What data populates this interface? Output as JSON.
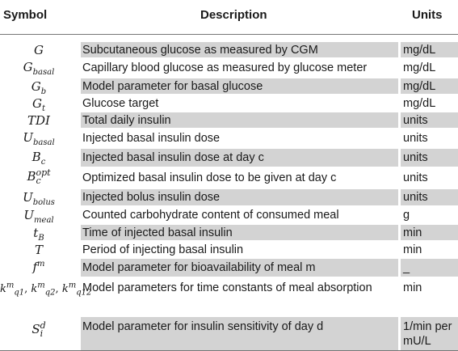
{
  "header": {
    "symbol": "Symbol",
    "description": "Description",
    "units": "Units"
  },
  "rows": [
    {
      "sym_base": "G",
      "sym_sub": "",
      "sym_sup": "",
      "description": "Subcutaneous glucose as measured by CGM",
      "units": "mg/dL"
    },
    {
      "sym_base": "G",
      "sym_sub": "basal",
      "sym_sup": "",
      "description": "Capillary blood glucose as measured by glucose meter",
      "units": "mg/dL"
    },
    {
      "sym_base": "G",
      "sym_sub": "b",
      "sym_sup": "",
      "description": "Model parameter for basal glucose",
      "units": "mg/dL"
    },
    {
      "sym_base": "G",
      "sym_sub": "t",
      "sym_sup": "",
      "description": "Glucose target",
      "units": "mg/dL"
    },
    {
      "sym_base": "TDI",
      "sym_sub": "",
      "sym_sup": "",
      "description": "Total daily insulin",
      "units": "units"
    },
    {
      "sym_base": "U",
      "sym_sub": "basal",
      "sym_sup": "",
      "description": "Injected basal insulin dose",
      "units": "units"
    },
    {
      "sym_base": "B",
      "sym_sub": "c",
      "sym_sup": "",
      "description": "Injected basal insulin dose at day c",
      "units": "units"
    },
    {
      "sym_base": "B",
      "sym_sub": "c",
      "sym_sup": "opt",
      "description": "Optimized basal insulin dose to be given at day c",
      "units": "units"
    },
    {
      "sym_base": "U",
      "sym_sub": "bolus",
      "sym_sup": "",
      "description": "Injected bolus insulin dose",
      "units": "units"
    },
    {
      "sym_base": "U",
      "sym_sub": "meal",
      "sym_sup": "",
      "description": "Counted carbohydrate content of consumed meal",
      "units": "g"
    },
    {
      "sym_base": "t",
      "sym_sub": "B",
      "sym_sup": "",
      "description": "Time of injected basal insulin",
      "units": "min"
    },
    {
      "sym_base": "T",
      "sym_sub": "",
      "sym_sup": "",
      "description": "Period of injecting basal insulin",
      "units": "min"
    },
    {
      "sym_base": "f",
      "sym_sub": "",
      "sym_sup": "m",
      "description": "Model parameter for bioavailability of meal m",
      "units": "_"
    },
    {
      "sym_text": "k",
      "sym_multi": [
        "q1",
        "q2",
        "q12"
      ],
      "sym_sup": "m",
      "description": "Model parameters for time constants of meal absorption",
      "units": "min"
    },
    {
      "sym_base": "S",
      "sym_sub": "i",
      "sym_sup": "d",
      "description": "Model parameter for insulin sensitivity of day d",
      "units": "1/min per mU/L"
    }
  ]
}
